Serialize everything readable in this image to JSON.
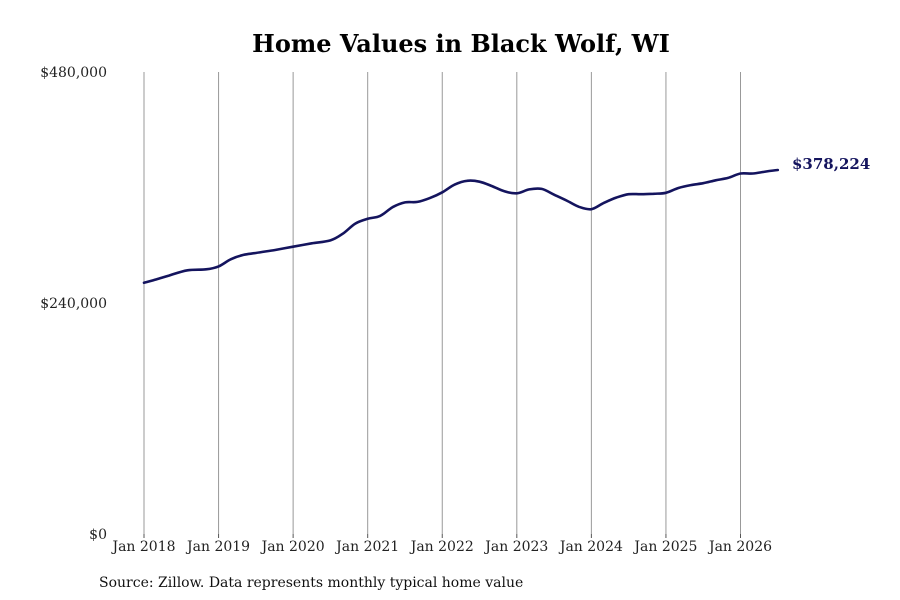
{
  "chart_data": {
    "type": "line",
    "title": "Home Values in Black Wolf, WI",
    "xlabel": "",
    "ylabel": "",
    "ylim": [
      0,
      480000
    ],
    "xlim": [
      "2018-01",
      "2026-07"
    ],
    "y_tick_labels": [
      {
        "value": 480000,
        "label": "$480,000"
      },
      {
        "value": 240000,
        "label": "$240,000"
      },
      {
        "value": 0,
        "label": "$0"
      }
    ],
    "x_tick_labels": [
      {
        "value": "2018-01",
        "label": "Jan 2018"
      },
      {
        "value": "2019-01",
        "label": "Jan 2019"
      },
      {
        "value": "2020-01",
        "label": "Jan 2020"
      },
      {
        "value": "2021-01",
        "label": "Jan 2021"
      },
      {
        "value": "2022-01",
        "label": "Jan 2022"
      },
      {
        "value": "2023-01",
        "label": "Jan 2023"
      },
      {
        "value": "2024-01",
        "label": "Jan 2024"
      },
      {
        "value": "2025-01",
        "label": "Jan 2025"
      },
      {
        "value": "2026-01",
        "label": "Jan 2026"
      }
    ],
    "grid": {
      "vertical": true,
      "horizontal": false
    },
    "series": [
      {
        "color": "#14145e",
        "x": [
          "2018-01",
          "2018-03",
          "2018-05",
          "2018-08",
          "2018-11",
          "2019-01",
          "2019-03",
          "2019-05",
          "2019-07",
          "2019-10",
          "2020-01",
          "2020-04",
          "2020-07",
          "2020-09",
          "2020-11",
          "2021-01",
          "2021-03",
          "2021-05",
          "2021-07",
          "2021-09",
          "2021-11",
          "2022-01",
          "2022-03",
          "2022-05",
          "2022-07",
          "2022-09",
          "2022-11",
          "2023-01",
          "2023-03",
          "2023-05",
          "2023-07",
          "2023-09",
          "2023-11",
          "2024-01",
          "2024-03",
          "2024-05",
          "2024-07",
          "2024-09",
          "2024-11",
          "2025-01",
          "2025-03",
          "2025-05",
          "2025-07",
          "2025-09",
          "2025-11",
          "2026-01",
          "2026-03",
          "2026-05",
          "2026-07"
        ],
        "values": [
          261000,
          264500,
          268500,
          274000,
          275000,
          278000,
          285500,
          290000,
          292000,
          295000,
          298500,
          302000,
          305000,
          312000,
          322500,
          327500,
          330500,
          339500,
          344500,
          345000,
          349000,
          355000,
          363000,
          367000,
          366000,
          361500,
          356000,
          354000,
          358000,
          358500,
          352500,
          346500,
          340000,
          337500,
          344000,
          349500,
          353000,
          353000,
          353500,
          354500,
          359500,
          362500,
          364500,
          367500,
          370000,
          374500,
          374500,
          376500,
          378224
        ]
      }
    ],
    "end_label": {
      "text": "$378,224",
      "value": 378224
    }
  },
  "footer": {
    "source": "Source: Zillow. Data represents monthly typical home value"
  }
}
